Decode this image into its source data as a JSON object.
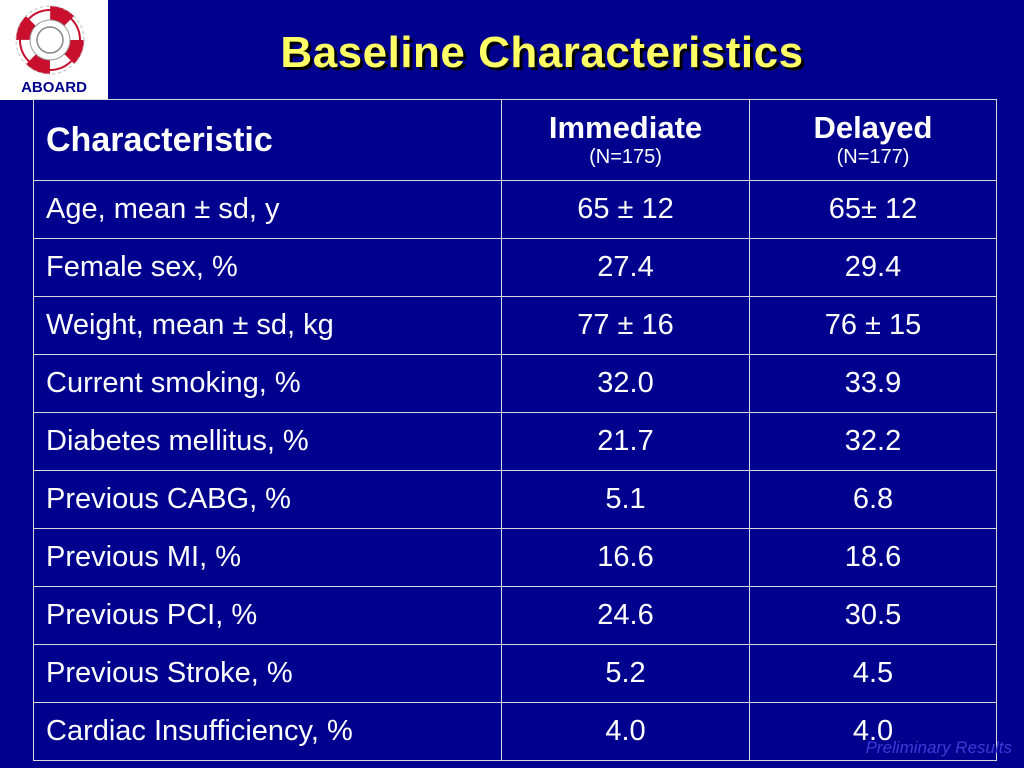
{
  "logo": {
    "text": "ABOARD"
  },
  "title": "Baseline Characteristics",
  "table": {
    "header": {
      "characteristic": "Characteristic",
      "immediate": {
        "label": "Immediate",
        "n": "(N=175)"
      },
      "delayed": {
        "label": "Delayed",
        "n": "(N=177)"
      }
    },
    "rows": [
      {
        "name": "Age, mean ± sd, y",
        "immediate": "65 ± 12",
        "delayed": "65± 12"
      },
      {
        "name": "Female sex, %",
        "immediate": "27.4",
        "delayed": "29.4"
      },
      {
        "name": "Weight, mean ± sd, kg",
        "immediate": "77 ± 16",
        "delayed": "76 ± 15"
      },
      {
        "name": "Current smoking, %",
        "immediate": "32.0",
        "delayed": "33.9"
      },
      {
        "name": "Diabetes mellitus, %",
        "immediate": "21.7",
        "delayed": "32.2"
      },
      {
        "name": "Previous CABG, %",
        "immediate": "5.1",
        "delayed": "6.8"
      },
      {
        "name": "Previous MI, %",
        "immediate": "16.6",
        "delayed": "18.6"
      },
      {
        "name": "Previous PCI, %",
        "immediate": "24.6",
        "delayed": "30.5"
      },
      {
        "name": "Previous Stroke, %",
        "immediate": "5.2",
        "delayed": "4.5"
      },
      {
        "name": "Cardiac Insufficiency, %",
        "immediate": "4.0",
        "delayed": "4.0"
      }
    ]
  },
  "footnote": "Preliminary Results",
  "colors": {
    "background": "#00008f",
    "title": "#ffff66",
    "immediate": "#33dd33",
    "delayed": "#ff8a1a"
  }
}
